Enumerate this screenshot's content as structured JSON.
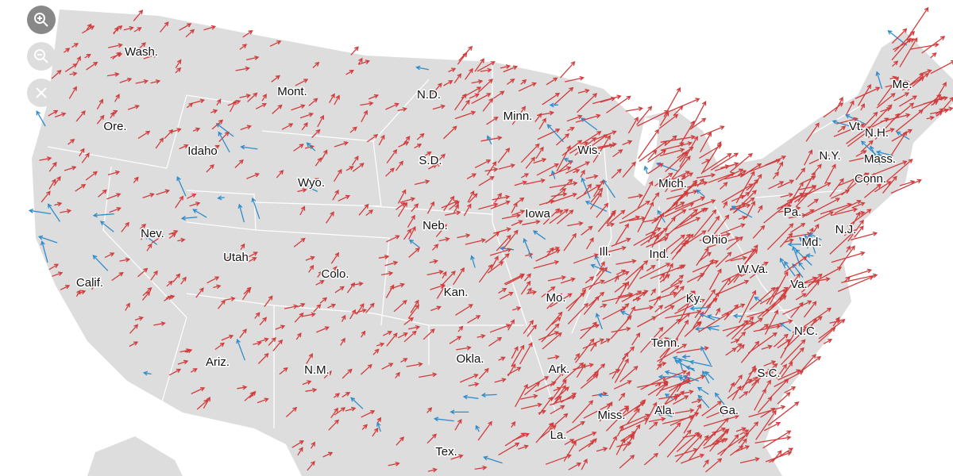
{
  "map": {
    "labels": [
      "Wash.",
      "Mont.",
      "N.D.",
      "Minn.",
      "Ore.",
      "Idaho",
      "Wis.",
      "S.D.",
      "Wyo.",
      "Mich.",
      "Vt.",
      "N.H.",
      "N.Y.",
      "Mass.",
      "Conn.",
      "Me.",
      "Pa.",
      "N.J.",
      "Iowa",
      "Neb.",
      "Nev.",
      "Utah",
      "Ill.",
      "Ind.",
      "Ohio",
      "Md.",
      "W.Va.",
      "Colo.",
      "Calif.",
      "Va.",
      "Kan.",
      "Mo.",
      "Ky.",
      "N.C.",
      "Tenn.",
      "Ariz.",
      "N.M.",
      "Okla.",
      "Ark.",
      "S.C.",
      "Miss.",
      "Ala.",
      "Ga.",
      "La.",
      "Tex."
    ]
  }
}
